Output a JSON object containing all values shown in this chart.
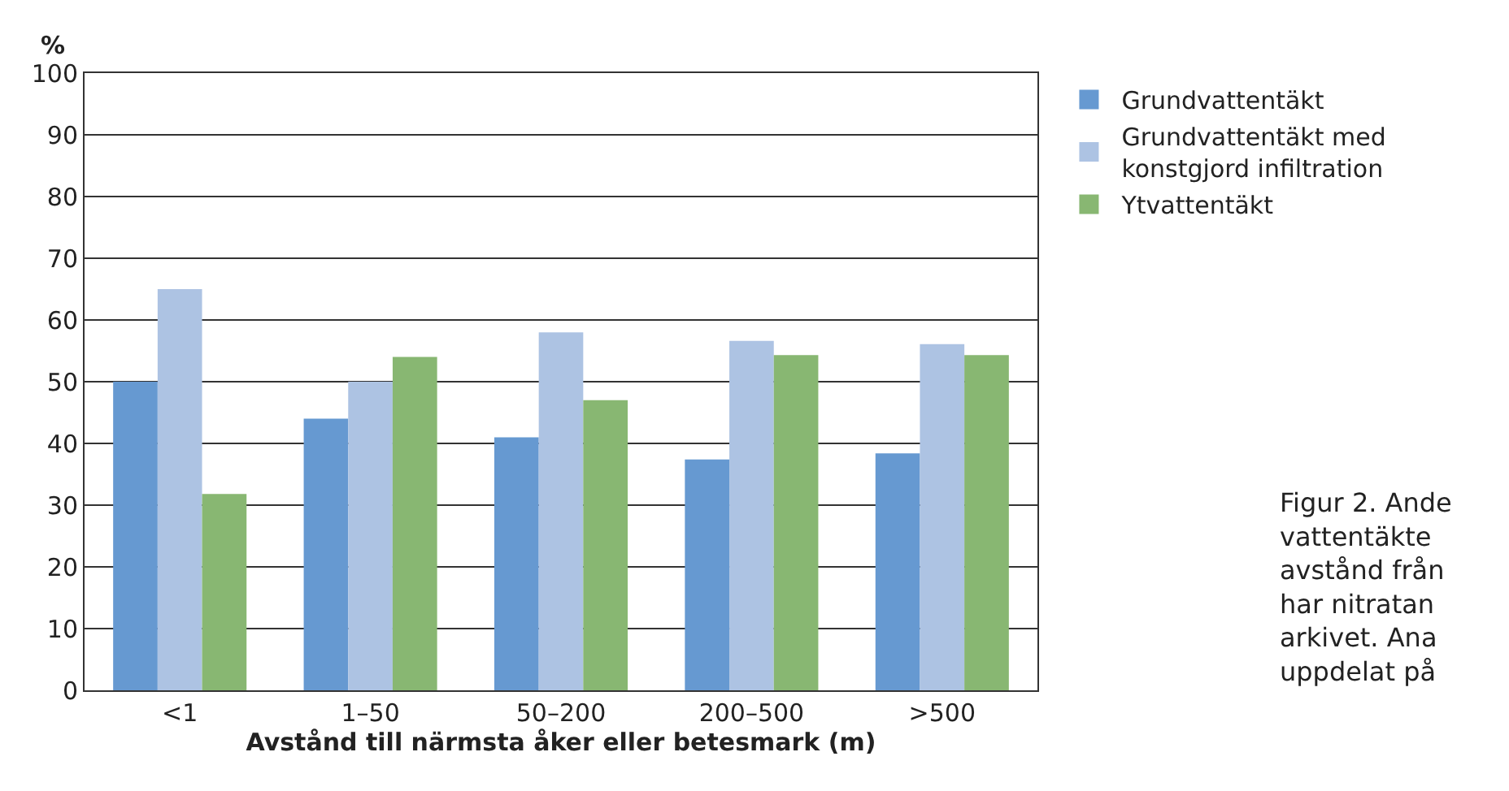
{
  "chart_data": {
    "type": "bar",
    "ylabel": "%",
    "xlabel": "Avstånd till närmsta åker eller betesmark (m)",
    "categories": [
      "<1",
      "1–50",
      "50–200",
      "200–500",
      ">500"
    ],
    "series": [
      {
        "name": "Grundvattentäkt",
        "color": "#6699d1",
        "values": [
          50,
          44,
          41,
          37.4,
          38.4
        ]
      },
      {
        "name": "Grundvattentäkt med\nkonstgjord infiltration",
        "color": "#adc3e3",
        "values": [
          65,
          50,
          58,
          56.6,
          56.1
        ]
      },
      {
        "name": "Ytvattentäkt",
        "color": "#88b772",
        "values": [
          31.8,
          54,
          47,
          54.3,
          54.3
        ]
      }
    ],
    "ylim": [
      0,
      100
    ],
    "yticks": [
      0,
      10,
      20,
      30,
      40,
      50,
      60,
      70,
      80,
      90,
      100
    ],
    "grid": "y",
    "legend": "top right",
    "annotations": [
      "Figur 2. Ande\nvattentäkte\navstånd från\nhar nitratan\narkivet. Ana\nuppdelat på"
    ]
  }
}
